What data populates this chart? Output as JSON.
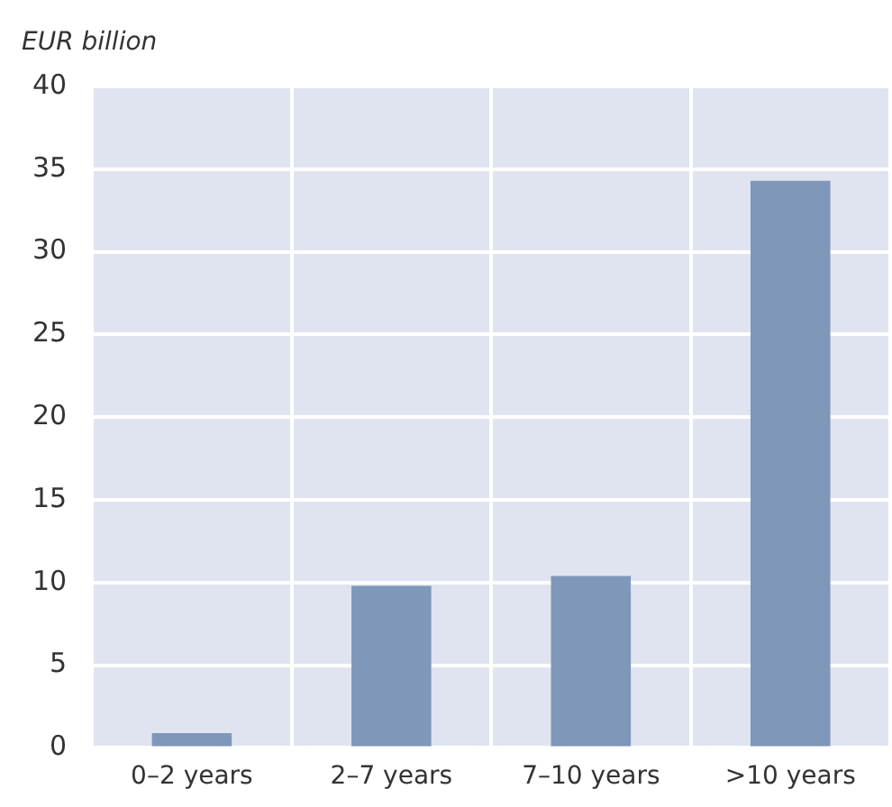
{
  "chart_data": {
    "type": "bar",
    "ylabel": "EUR billion",
    "categories": [
      "0–2 years",
      "2–7 years",
      "7–10 years",
      ">10 years"
    ],
    "values": [
      0.9,
      9.8,
      10.4,
      34.3
    ],
    "color": "#7f97b8",
    "ylim": [
      0,
      40
    ],
    "yticks": [
      0,
      5,
      10,
      15,
      20,
      25,
      30,
      35,
      40
    ],
    "grid": true,
    "legend": false
  }
}
